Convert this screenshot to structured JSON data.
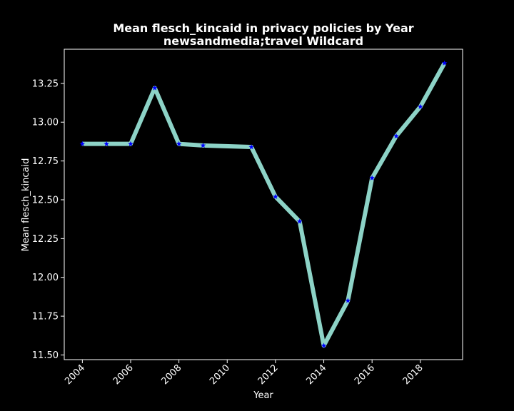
{
  "chart_data": {
    "type": "line",
    "title": "Mean flesch_kincaid in privacy policies by Year",
    "subtitle": "newsandmedia;travel Wildcard",
    "xlabel": "Year",
    "ylabel": "Mean flesch_kincaid",
    "x": [
      2004,
      2005,
      2006,
      2007,
      2008,
      2009,
      2011,
      2012,
      2013,
      2014,
      2015,
      2016,
      2017,
      2018,
      2019
    ],
    "y": [
      12.86,
      12.86,
      12.86,
      13.22,
      12.86,
      12.85,
      12.84,
      12.52,
      12.36,
      11.56,
      11.85,
      12.64,
      12.91,
      13.1,
      13.38
    ],
    "xticks": [
      2004,
      2006,
      2008,
      2010,
      2012,
      2014,
      2016,
      2018
    ],
    "yticks": [
      11.5,
      11.75,
      12.0,
      12.25,
      12.5,
      12.75,
      13.0,
      13.25
    ],
    "ytick_labels": [
      "11.50",
      "11.75",
      "12.00",
      "12.25",
      "12.50",
      "12.75",
      "13.00",
      "13.25"
    ],
    "xlim": [
      2003.25,
      2019.75
    ],
    "ylim": [
      11.47,
      13.47
    ],
    "line_color": "#8dd3c7",
    "marker_color": "#0000ff",
    "marker": "star",
    "grid": false,
    "background": "#000000",
    "axes_color": "#ffffff"
  }
}
